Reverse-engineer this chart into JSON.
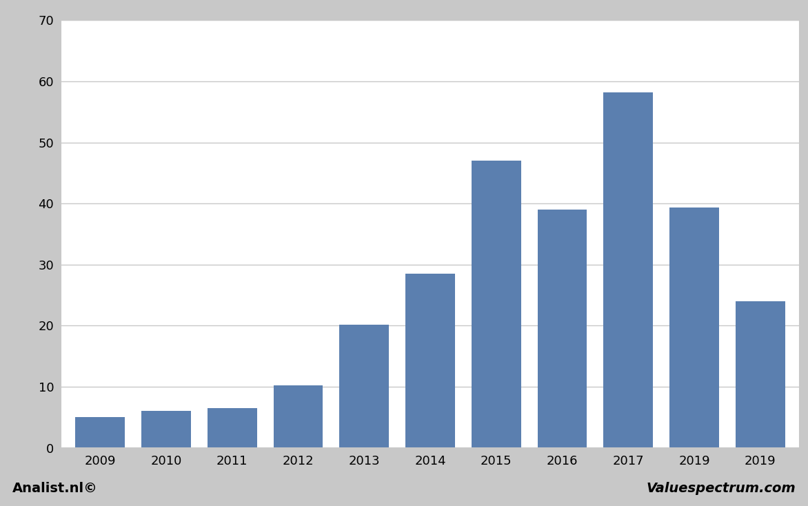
{
  "categories": [
    "2009",
    "2010",
    "2011",
    "2012",
    "2013",
    "2014",
    "2015",
    "2016",
    "2017",
    "2019",
    "2019"
  ],
  "values": [
    5,
    6,
    6.5,
    10.2,
    20.2,
    28.5,
    47,
    39,
    58.2,
    39.3,
    24
  ],
  "bar_color": "#5b7faf",
  "ylim": [
    0,
    70
  ],
  "yticks": [
    0,
    10,
    20,
    30,
    40,
    50,
    60,
    70
  ],
  "background_color": "#c8c8c8",
  "plot_bg_color": "#ffffff",
  "footer_bg_color": "#c8c8c8",
  "footer_left": "Analist.nl©",
  "footer_right": "Valuespectrum.com",
  "footer_fontsize": 14,
  "grid_color": "#c8c8c8",
  "tick_fontsize": 13,
  "bar_width": 0.75
}
